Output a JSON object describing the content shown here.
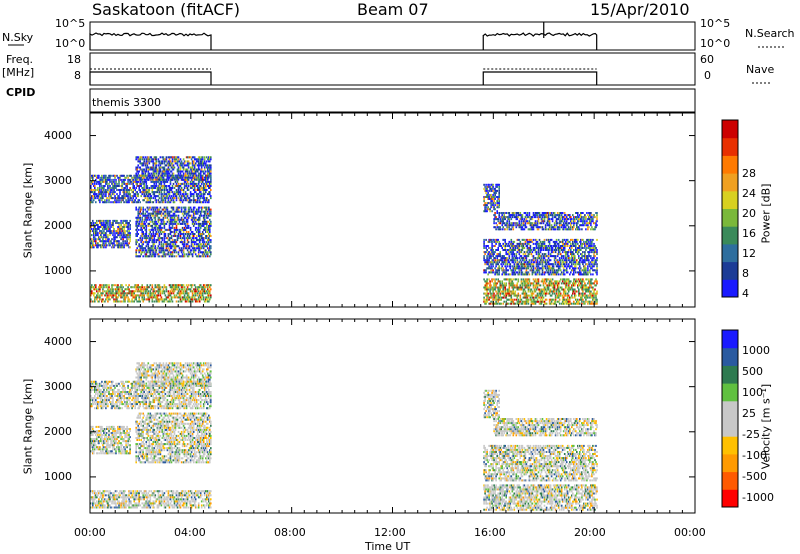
{
  "header": {
    "station": "Saskatoon (fitACF)",
    "beam": "Beam 07",
    "date": "15/Apr/2010"
  },
  "strip": {
    "nsky_label": "N.Sky",
    "nsky_ticks": [
      "10^5",
      "10^0"
    ],
    "nsearch_label": "N.Search",
    "nsearch_ticks": [
      "10^5",
      "10^0"
    ],
    "freq_label_1": "Freq.",
    "freq_label_2": "[MHz]",
    "freq_ticks": [
      "18",
      "8"
    ],
    "nave_label": "Nave",
    "nave_ticks": [
      "60",
      "0"
    ],
    "cpid_label": "CPID",
    "cpid_value": "themis 3300"
  },
  "colors": {
    "power": [
      "#1a1aff",
      "#1c3c96",
      "#2e6e9e",
      "#3a8a5a",
      "#7ab83a",
      "#d8d020",
      "#f0a020",
      "#ff7a00",
      "#e83000",
      "#cc0000"
    ],
    "velocity": [
      "#ff0000",
      "#ff5a00",
      "#ff9a00",
      "#ffc000",
      "#c8c8c8",
      "#c8c8c8",
      "#60c040",
      "#2e7a50",
      "#2a5aa0",
      "#1a1aff"
    ]
  },
  "chart_data": [
    {
      "type": "heatmap",
      "name_key": "power",
      "ylabel": "Slant Range [km]",
      "xlabel": "",
      "ylim": [
        200,
        4500
      ],
      "xlim_hours": [
        0,
        24
      ],
      "y_ticks": [
        "1000",
        "2000",
        "3000",
        "4000"
      ],
      "colorbar_label": "Power [dB]",
      "colorbar_ticks": [
        "4",
        "8",
        "12",
        "16",
        "20",
        "24",
        "28"
      ],
      "colorbar_range": [
        0,
        30
      ],
      "data_intervals_hours": [
        [
          0.0,
          4.8
        ],
        [
          15.6,
          20.1
        ]
      ]
    },
    {
      "type": "heatmap",
      "name_key": "velocity",
      "ylabel": "Slant Range [km]",
      "xlabel": "Time UT",
      "ylim": [
        200,
        4500
      ],
      "xlim_hours": [
        0,
        24
      ],
      "y_ticks": [
        "1000",
        "2000",
        "3000",
        "4000"
      ],
      "x_ticks": [
        "00:00",
        "04:00",
        "08:00",
        "12:00",
        "16:00",
        "20:00",
        "00:00"
      ],
      "colorbar_label": "Velocity [m s⁻¹]",
      "colorbar_ticks": [
        "1000",
        "500",
        "100",
        "25",
        "-25",
        "-100",
        "-500",
        "-1000"
      ],
      "data_intervals_hours": [
        [
          0.0,
          4.8
        ],
        [
          15.6,
          20.1
        ]
      ]
    }
  ]
}
